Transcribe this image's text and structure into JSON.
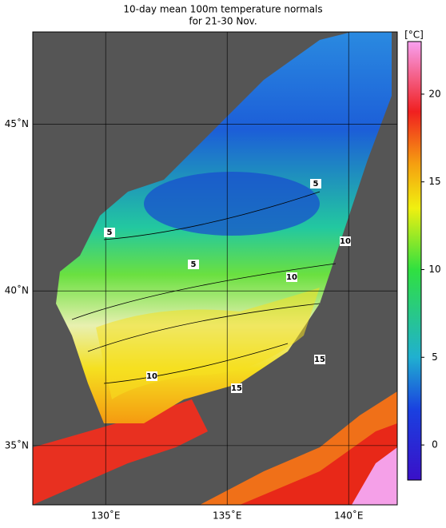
{
  "title": [
    "10-day mean 100m temperature normals",
    "for 21-30 Nov."
  ],
  "map": {
    "lon_range": [
      127,
      142
    ],
    "lat_range": [
      33,
      47.6
    ],
    "lon_ticks": [
      {
        "value": 130,
        "label": "130˚E"
      },
      {
        "value": 135,
        "label": "135˚E"
      },
      {
        "value": 140,
        "label": "140˚E"
      }
    ],
    "lat_ticks": [
      {
        "value": 35,
        "label": "35˚N"
      },
      {
        "value": 40,
        "label": "40˚N"
      },
      {
        "value": 45,
        "label": "45˚N"
      }
    ],
    "contour_labels": [
      5,
      5,
      5,
      10,
      10,
      10,
      15,
      15
    ]
  },
  "colorbar": {
    "unit": "[°C]",
    "range": [
      -2,
      23
    ],
    "ticks": [
      0,
      5,
      10,
      15,
      20
    ]
  }
}
